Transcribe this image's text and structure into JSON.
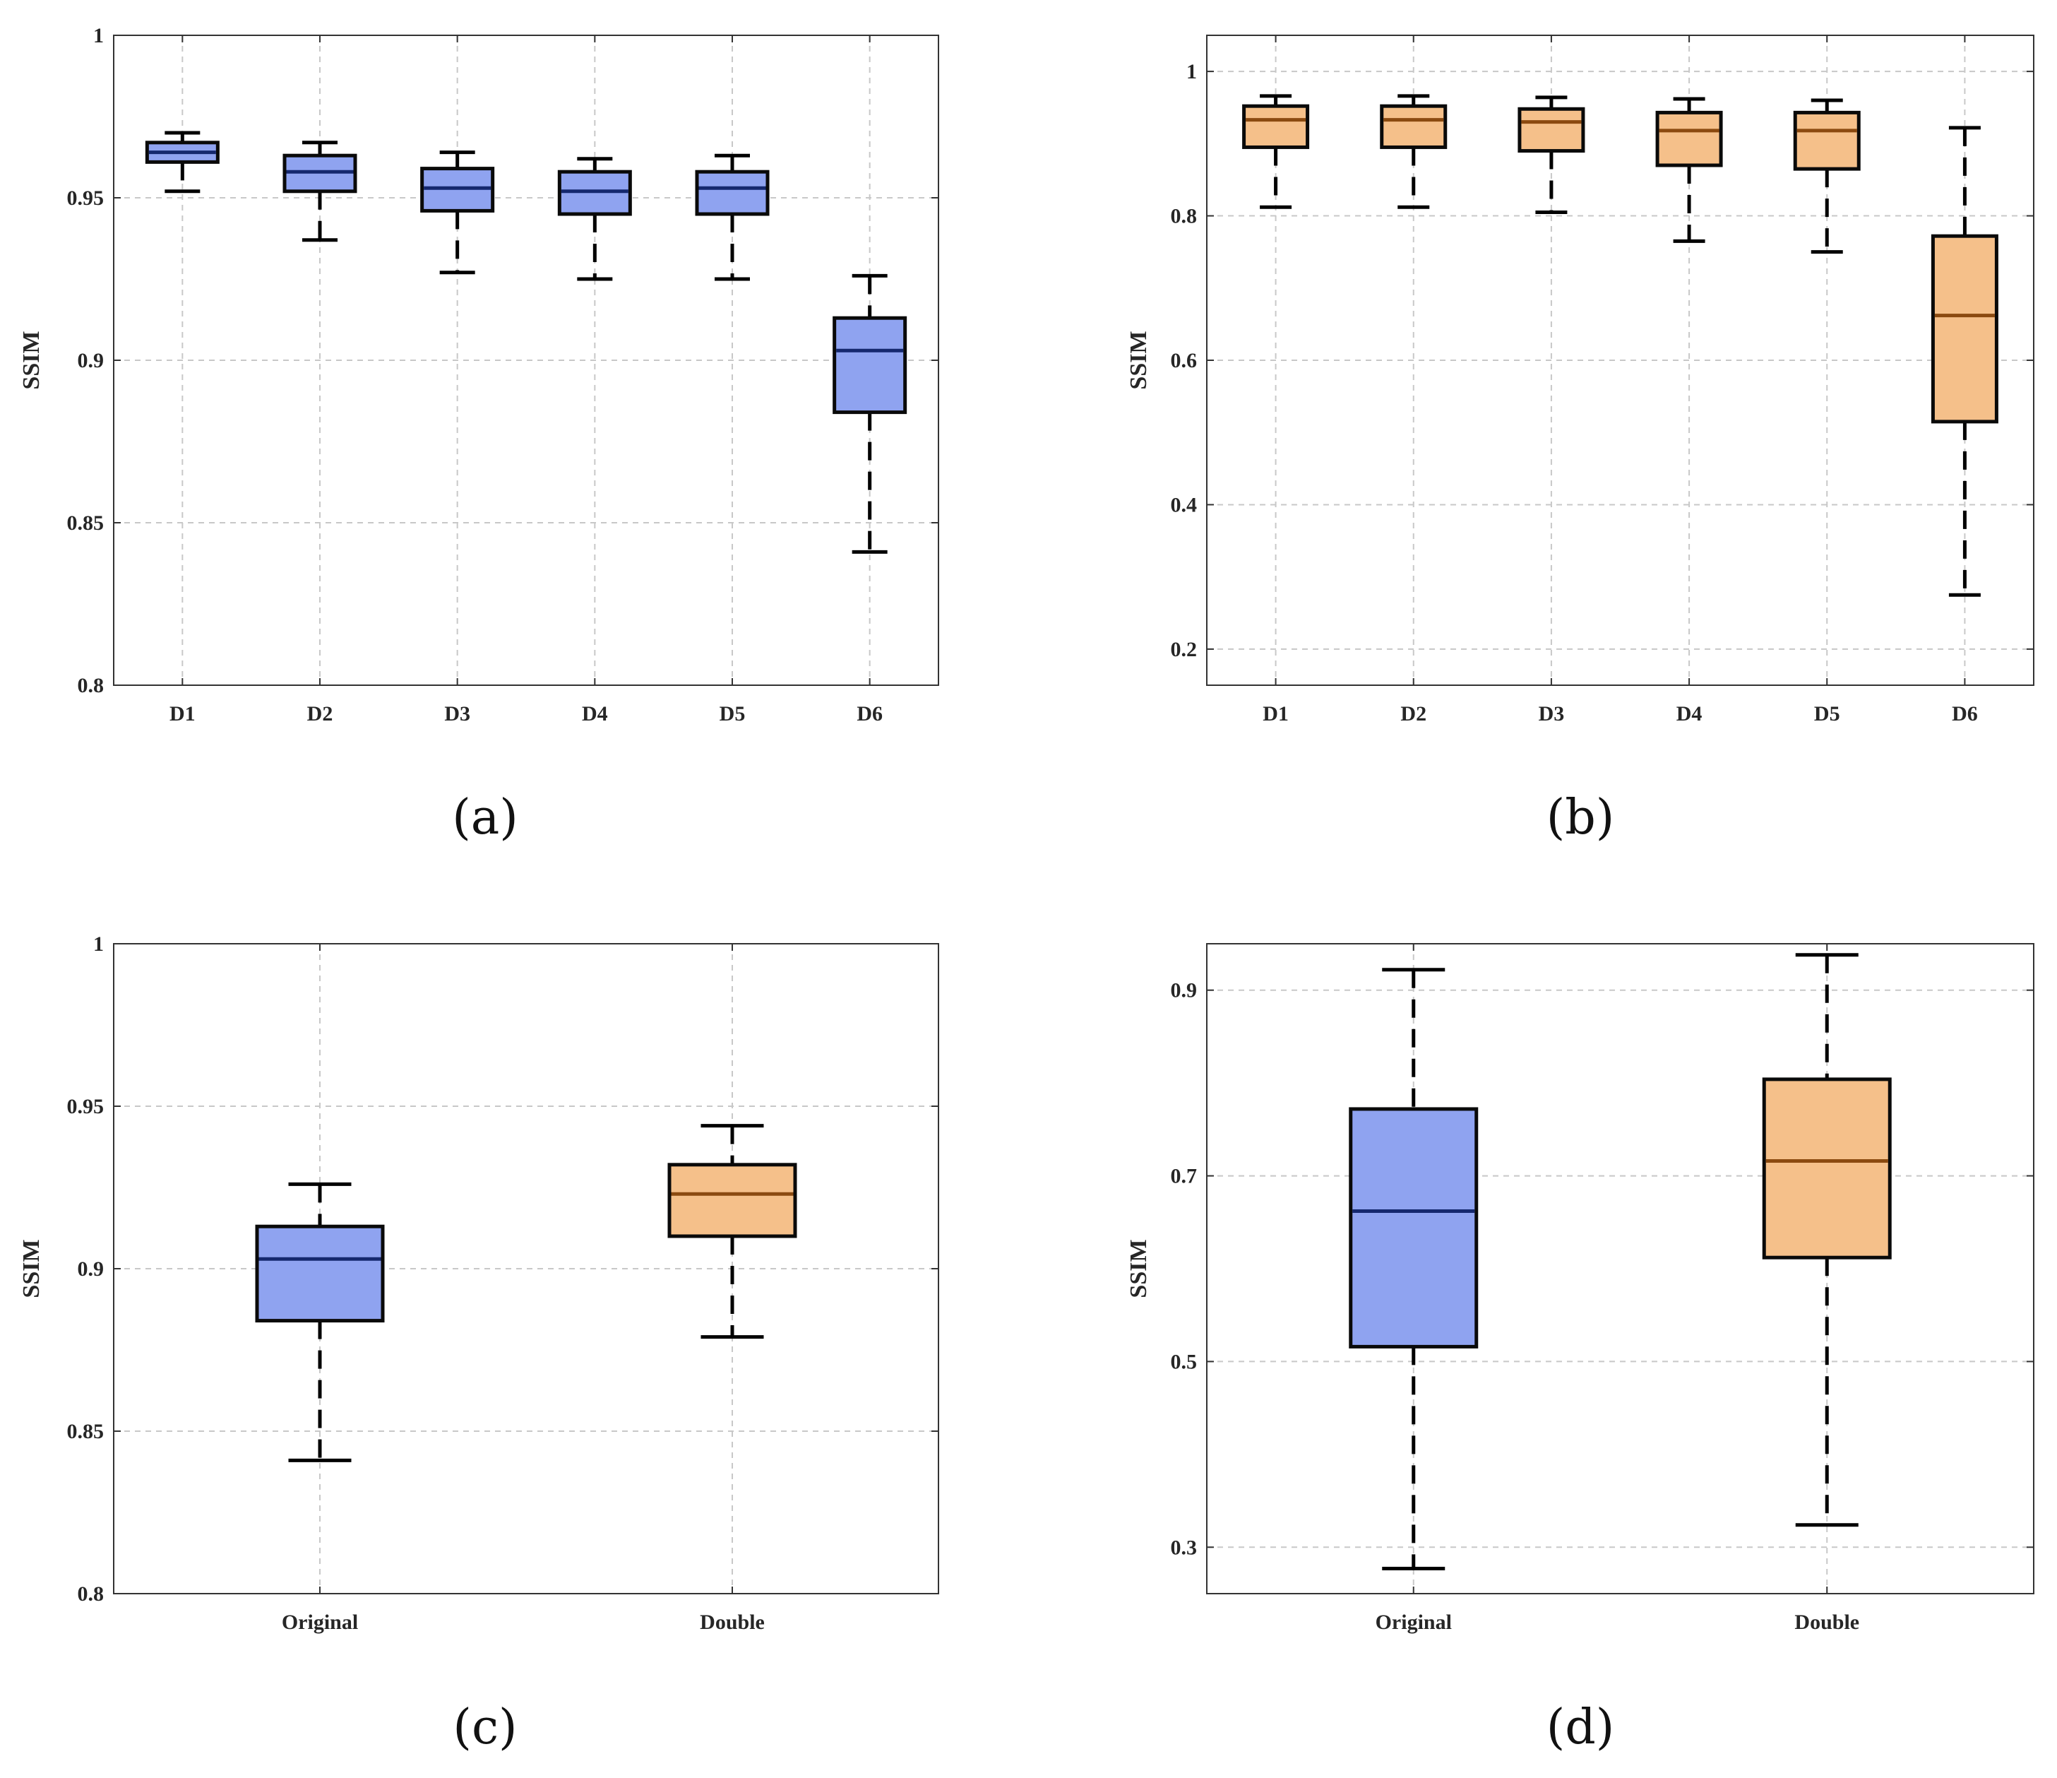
{
  "colors": {
    "blue_fill": "#8fa3f0",
    "blue_median": "#15286e",
    "orange_fill": "#f5c08a",
    "orange_median": "#8b4a10"
  },
  "chart_data": [
    {
      "type": "box",
      "panel_label": "(a)",
      "ylabel": "SSIM",
      "ylim": [
        0.8,
        1.0
      ],
      "yticks": [
        0.8,
        0.85,
        0.9,
        0.95,
        1.0
      ],
      "ytick_labels": [
        "0.8",
        "0.85",
        "0.9",
        "0.95",
        "1"
      ],
      "grid": true,
      "categories": [
        "D1",
        "D2",
        "D3",
        "D4",
        "D5",
        "D6"
      ],
      "boxes": [
        {
          "min": 0.952,
          "q1": 0.961,
          "median": 0.964,
          "q3": 0.967,
          "max": 0.97,
          "color": "blue"
        },
        {
          "min": 0.937,
          "q1": 0.952,
          "median": 0.958,
          "q3": 0.963,
          "max": 0.967,
          "color": "blue"
        },
        {
          "min": 0.927,
          "q1": 0.946,
          "median": 0.953,
          "q3": 0.959,
          "max": 0.964,
          "color": "blue"
        },
        {
          "min": 0.925,
          "q1": 0.945,
          "median": 0.952,
          "q3": 0.958,
          "max": 0.962,
          "color": "blue"
        },
        {
          "min": 0.925,
          "q1": 0.945,
          "median": 0.953,
          "q3": 0.958,
          "max": 0.963,
          "color": "blue"
        },
        {
          "min": 0.841,
          "q1": 0.884,
          "median": 0.903,
          "q3": 0.913,
          "max": 0.926,
          "color": "blue"
        }
      ]
    },
    {
      "type": "box",
      "panel_label": "(b)",
      "ylabel": "SSIM",
      "ylim": [
        0.15,
        1.05
      ],
      "yticks": [
        0.2,
        0.4,
        0.6,
        0.8,
        1.0
      ],
      "ytick_labels": [
        "0.2",
        "0.4",
        "0.6",
        "0.8",
        "1"
      ],
      "grid": true,
      "categories": [
        "D1",
        "D2",
        "D3",
        "D4",
        "D5",
        "D6"
      ],
      "boxes": [
        {
          "min": 0.812,
          "q1": 0.895,
          "median": 0.933,
          "q3": 0.952,
          "max": 0.966,
          "color": "orange"
        },
        {
          "min": 0.812,
          "q1": 0.895,
          "median": 0.933,
          "q3": 0.952,
          "max": 0.966,
          "color": "orange"
        },
        {
          "min": 0.805,
          "q1": 0.89,
          "median": 0.93,
          "q3": 0.948,
          "max": 0.964,
          "color": "orange"
        },
        {
          "min": 0.765,
          "q1": 0.87,
          "median": 0.918,
          "q3": 0.943,
          "max": 0.962,
          "color": "orange"
        },
        {
          "min": 0.75,
          "q1": 0.865,
          "median": 0.918,
          "q3": 0.943,
          "max": 0.96,
          "color": "orange"
        },
        {
          "min": 0.275,
          "q1": 0.515,
          "median": 0.662,
          "q3": 0.772,
          "max": 0.922,
          "color": "orange"
        }
      ]
    },
    {
      "type": "box",
      "panel_label": "(c)",
      "ylabel": "SSIM",
      "ylim": [
        0.8,
        1.0
      ],
      "yticks": [
        0.8,
        0.85,
        0.9,
        0.95,
        1.0
      ],
      "ytick_labels": [
        "0.8",
        "0.85",
        "0.9",
        "0.95",
        "1"
      ],
      "grid": true,
      "categories": [
        "Original",
        "Double"
      ],
      "boxes": [
        {
          "min": 0.841,
          "q1": 0.884,
          "median": 0.903,
          "q3": 0.913,
          "max": 0.926,
          "color": "blue"
        },
        {
          "min": 0.879,
          "q1": 0.91,
          "median": 0.923,
          "q3": 0.932,
          "max": 0.944,
          "color": "orange"
        }
      ]
    },
    {
      "type": "box",
      "panel_label": "(d)",
      "ylabel": "SSIM",
      "ylim": [
        0.25,
        0.95
      ],
      "yticks": [
        0.3,
        0.5,
        0.7,
        0.9
      ],
      "ytick_labels": [
        "0.3",
        "0.5",
        "0.7",
        "0.9"
      ],
      "grid": true,
      "categories": [
        "Original",
        "Double"
      ],
      "boxes": [
        {
          "min": 0.277,
          "q1": 0.516,
          "median": 0.662,
          "q3": 0.772,
          "max": 0.922,
          "color": "blue"
        },
        {
          "min": 0.324,
          "q1": 0.612,
          "median": 0.716,
          "q3": 0.804,
          "max": 0.938,
          "color": "orange"
        }
      ]
    }
  ]
}
